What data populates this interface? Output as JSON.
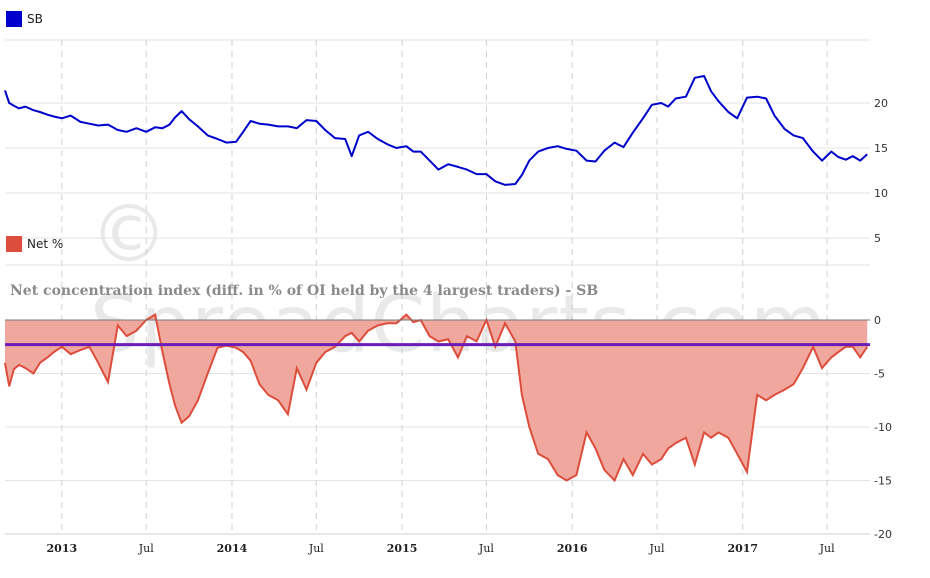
{
  "watermark": "© SpreadCharts.com",
  "chart_data": [
    {
      "type": "line",
      "title": "",
      "legend": "top-left",
      "series": [
        {
          "name": "SB",
          "color": "#0000cc",
          "points": [
            [
              "2012-09-01",
              21.4
            ],
            [
              "2012-09-10",
              20.0
            ],
            [
              "2012-09-20",
              19.7
            ],
            [
              "2012-10-01",
              19.4
            ],
            [
              "2012-10-15",
              19.6
            ],
            [
              "2012-11-01",
              19.2
            ],
            [
              "2012-11-15",
              19.0
            ],
            [
              "2012-12-01",
              18.7
            ],
            [
              "2012-12-15",
              18.5
            ],
            [
              "2013-01-01",
              18.3
            ],
            [
              "2013-01-20",
              18.6
            ],
            [
              "2013-02-10",
              17.9
            ],
            [
              "2013-03-01",
              17.7
            ],
            [
              "2013-03-20",
              17.5
            ],
            [
              "2013-04-10",
              17.6
            ],
            [
              "2013-05-01",
              17.0
            ],
            [
              "2013-05-20",
              16.8
            ],
            [
              "2013-06-10",
              17.2
            ],
            [
              "2013-07-01",
              16.8
            ],
            [
              "2013-07-20",
              17.3
            ],
            [
              "2013-08-05",
              17.2
            ],
            [
              "2013-08-20",
              17.6
            ],
            [
              "2013-09-01",
              18.4
            ],
            [
              "2013-09-15",
              19.1
            ],
            [
              "2013-10-01",
              18.2
            ],
            [
              "2013-10-20",
              17.4
            ],
            [
              "2013-11-10",
              16.4
            ],
            [
              "2013-12-01",
              16.0
            ],
            [
              "2013-12-20",
              15.6
            ],
            [
              "2014-01-10",
              15.7
            ],
            [
              "2014-01-25",
              16.8
            ],
            [
              "2014-02-10",
              18.0
            ],
            [
              "2014-03-01",
              17.7
            ],
            [
              "2014-03-20",
              17.6
            ],
            [
              "2014-04-10",
              17.4
            ],
            [
              "2014-05-01",
              17.4
            ],
            [
              "2014-05-20",
              17.2
            ],
            [
              "2014-06-10",
              18.1
            ],
            [
              "2014-07-01",
              18.0
            ],
            [
              "2014-07-20",
              17.0
            ],
            [
              "2014-08-10",
              16.1
            ],
            [
              "2014-09-01",
              16.0
            ],
            [
              "2014-09-15",
              14.1
            ],
            [
              "2014-10-01",
              16.4
            ],
            [
              "2014-10-20",
              16.8
            ],
            [
              "2014-11-10",
              16.0
            ],
            [
              "2014-12-01",
              15.4
            ],
            [
              "2014-12-20",
              15.0
            ],
            [
              "2015-01-10",
              15.2
            ],
            [
              "2015-01-25",
              14.6
            ],
            [
              "2015-02-10",
              14.6
            ],
            [
              "2015-03-01",
              13.6
            ],
            [
              "2015-03-20",
              12.6
            ],
            [
              "2015-04-10",
              13.2
            ],
            [
              "2015-05-01",
              12.9
            ],
            [
              "2015-05-20",
              12.6
            ],
            [
              "2015-06-10",
              12.1
            ],
            [
              "2015-07-01",
              12.1
            ],
            [
              "2015-07-20",
              11.3
            ],
            [
              "2015-08-10",
              10.9
            ],
            [
              "2015-09-01",
              11.0
            ],
            [
              "2015-09-15",
              12.0
            ],
            [
              "2015-10-01",
              13.6
            ],
            [
              "2015-10-20",
              14.6
            ],
            [
              "2015-11-10",
              15.0
            ],
            [
              "2015-12-01",
              15.2
            ],
            [
              "2015-12-20",
              14.9
            ],
            [
              "2016-01-10",
              14.7
            ],
            [
              "2016-02-01",
              13.6
            ],
            [
              "2016-02-20",
              13.5
            ],
            [
              "2016-03-10",
              14.7
            ],
            [
              "2016-04-01",
              15.6
            ],
            [
              "2016-04-20",
              15.1
            ],
            [
              "2016-05-10",
              16.7
            ],
            [
              "2016-06-01",
              18.3
            ],
            [
              "2016-06-20",
              19.8
            ],
            [
              "2016-07-10",
              20.0
            ],
            [
              "2016-07-25",
              19.6
            ],
            [
              "2016-08-10",
              20.5
            ],
            [
              "2016-09-01",
              20.7
            ],
            [
              "2016-09-20",
              22.8
            ],
            [
              "2016-10-10",
              23.0
            ],
            [
              "2016-10-25",
              21.3
            ],
            [
              "2016-11-10",
              20.2
            ],
            [
              "2016-12-01",
              19.0
            ],
            [
              "2016-12-20",
              18.3
            ],
            [
              "2017-01-10",
              20.6
            ],
            [
              "2017-02-01",
              20.7
            ],
            [
              "2017-02-20",
              20.5
            ],
            [
              "2017-03-10",
              18.6
            ],
            [
              "2017-04-01",
              17.1
            ],
            [
              "2017-04-20",
              16.4
            ],
            [
              "2017-05-10",
              16.1
            ],
            [
              "2017-06-01",
              14.6
            ],
            [
              "2017-06-20",
              13.6
            ],
            [
              "2017-07-10",
              14.6
            ],
            [
              "2017-07-25",
              14.0
            ],
            [
              "2017-08-10",
              13.7
            ],
            [
              "2017-08-25",
              14.1
            ],
            [
              "2017-09-10",
              13.6
            ],
            [
              "2017-09-25",
              14.3
            ]
          ]
        }
      ],
      "yaxis": {
        "position": "right",
        "ticks": [
          5,
          10,
          15,
          20
        ],
        "ylim": [
          2,
          27
        ]
      },
      "grid": true
    },
    {
      "type": "area",
      "title": "Net concentration index (diff. in % of OI held by the 4 largest traders) - SB",
      "legend": "top-left",
      "series": [
        {
          "name": "Net %",
          "color": "#dc4d3c",
          "fill": "#f0a89e",
          "points": [
            [
              "2012-09-01",
              -4.0
            ],
            [
              "2012-09-10",
              -6.2
            ],
            [
              "2012-09-20",
              -4.6
            ],
            [
              "2012-10-01",
              -4.2
            ],
            [
              "2012-10-15",
              -4.5
            ],
            [
              "2012-11-01",
              -5.0
            ],
            [
              "2012-11-15",
              -4.0
            ],
            [
              "2012-12-01",
              -3.5
            ],
            [
              "2012-12-15",
              -3.0
            ],
            [
              "2013-01-01",
              -2.5
            ],
            [
              "2013-01-20",
              -3.2
            ],
            [
              "2013-02-10",
              -2.8
            ],
            [
              "2013-03-01",
              -2.5
            ],
            [
              "2013-03-20",
              -4.0
            ],
            [
              "2013-04-10",
              -5.8
            ],
            [
              "2013-05-01",
              -0.5
            ],
            [
              "2013-05-20",
              -1.5
            ],
            [
              "2013-06-10",
              -1.0
            ],
            [
              "2013-07-01",
              0.0
            ],
            [
              "2013-07-20",
              0.5
            ],
            [
              "2013-08-05",
              -3.0
            ],
            [
              "2013-08-20",
              -6.0
            ],
            [
              "2013-09-01",
              -8.0
            ],
            [
              "2013-09-15",
              -9.6
            ],
            [
              "2013-10-01",
              -9.0
            ],
            [
              "2013-10-20",
              -7.5
            ],
            [
              "2013-11-10",
              -5.0
            ],
            [
              "2013-12-01",
              -2.6
            ],
            [
              "2013-12-20",
              -2.4
            ],
            [
              "2014-01-10",
              -2.6
            ],
            [
              "2014-01-25",
              -3.0
            ],
            [
              "2014-02-10",
              -3.8
            ],
            [
              "2014-03-01",
              -6.0
            ],
            [
              "2014-03-20",
              -7.0
            ],
            [
              "2014-04-10",
              -7.5
            ],
            [
              "2014-05-01",
              -8.8
            ],
            [
              "2014-05-20",
              -4.5
            ],
            [
              "2014-06-10",
              -6.5
            ],
            [
              "2014-07-01",
              -4.0
            ],
            [
              "2014-07-20",
              -3.0
            ],
            [
              "2014-08-10",
              -2.5
            ],
            [
              "2014-09-01",
              -1.5
            ],
            [
              "2014-09-15",
              -1.2
            ],
            [
              "2014-10-01",
              -2.0
            ],
            [
              "2014-10-20",
              -1.0
            ],
            [
              "2014-11-10",
              -0.5
            ],
            [
              "2014-12-01",
              -0.3
            ],
            [
              "2014-12-20",
              -0.3
            ],
            [
              "2015-01-10",
              0.5
            ],
            [
              "2015-01-25",
              -0.2
            ],
            [
              "2015-02-10",
              0.0
            ],
            [
              "2015-03-01",
              -1.5
            ],
            [
              "2015-03-20",
              -2.0
            ],
            [
              "2015-04-10",
              -1.8
            ],
            [
              "2015-05-01",
              -3.5
            ],
            [
              "2015-05-20",
              -1.5
            ],
            [
              "2015-06-10",
              -2.0
            ],
            [
              "2015-07-01",
              0.0
            ],
            [
              "2015-07-20",
              -2.5
            ],
            [
              "2015-08-10",
              -0.3
            ],
            [
              "2015-09-01",
              -2.0
            ],
            [
              "2015-09-15",
              -7.0
            ],
            [
              "2015-10-01",
              -10.0
            ],
            [
              "2015-10-20",
              -12.5
            ],
            [
              "2015-11-10",
              -13.0
            ],
            [
              "2015-12-01",
              -14.5
            ],
            [
              "2015-12-20",
              -15.0
            ],
            [
              "2016-01-10",
              -14.5
            ],
            [
              "2016-02-01",
              -10.5
            ],
            [
              "2016-02-20",
              -12.0
            ],
            [
              "2016-03-10",
              -14.0
            ],
            [
              "2016-04-01",
              -15.0
            ],
            [
              "2016-04-20",
              -13.0
            ],
            [
              "2016-05-10",
              -14.5
            ],
            [
              "2016-06-01",
              -12.5
            ],
            [
              "2016-06-20",
              -13.5
            ],
            [
              "2016-07-10",
              -13.0
            ],
            [
              "2016-07-25",
              -12.0
            ],
            [
              "2016-08-10",
              -11.5
            ],
            [
              "2016-09-01",
              -11.0
            ],
            [
              "2016-09-20",
              -13.5
            ],
            [
              "2016-10-10",
              -10.5
            ],
            [
              "2016-10-25",
              -11.0
            ],
            [
              "2016-11-10",
              -10.5
            ],
            [
              "2016-12-01",
              -11.0
            ],
            [
              "2016-12-20",
              -12.5
            ],
            [
              "2017-01-10",
              -14.2
            ],
            [
              "2017-02-01",
              -7.0
            ],
            [
              "2017-02-20",
              -7.5
            ],
            [
              "2017-03-10",
              -7.0
            ],
            [
              "2017-04-01",
              -6.5
            ],
            [
              "2017-04-20",
              -6.0
            ],
            [
              "2017-05-10",
              -4.5
            ],
            [
              "2017-06-01",
              -2.5
            ],
            [
              "2017-06-20",
              -4.5
            ],
            [
              "2017-07-10",
              -3.5
            ],
            [
              "2017-07-25",
              -3.0
            ],
            [
              "2017-08-10",
              -2.5
            ],
            [
              "2017-08-25",
              -2.5
            ],
            [
              "2017-09-10",
              -3.5
            ],
            [
              "2017-09-25",
              -2.5
            ]
          ]
        }
      ],
      "reference_line": {
        "value": -2.3,
        "color": "#6a1bb8"
      },
      "yaxis": {
        "position": "right",
        "ticks": [
          0,
          -5,
          -10,
          -15,
          -20
        ],
        "ylim": [
          -20,
          0
        ]
      },
      "xaxis": {
        "ticks": [
          {
            "label": "2013",
            "date": "2013-01-01",
            "bold": true
          },
          {
            "label": "Jul",
            "date": "2013-07-01",
            "bold": false
          },
          {
            "label": "2014",
            "date": "2014-01-01",
            "bold": true
          },
          {
            "label": "Jul",
            "date": "2014-07-01",
            "bold": false
          },
          {
            "label": "2015",
            "date": "2015-01-01",
            "bold": true
          },
          {
            "label": "Jul",
            "date": "2015-07-01",
            "bold": false
          },
          {
            "label": "2016",
            "date": "2016-01-01",
            "bold": true
          },
          {
            "label": "Jul",
            "date": "2016-07-01",
            "bold": false
          },
          {
            "label": "2017",
            "date": "2017-01-01",
            "bold": true
          },
          {
            "label": "Jul",
            "date": "2017-07-01",
            "bold": false
          }
        ],
        "range": [
          "2012-09-01",
          "2017-10-01"
        ]
      },
      "grid": true
    }
  ]
}
